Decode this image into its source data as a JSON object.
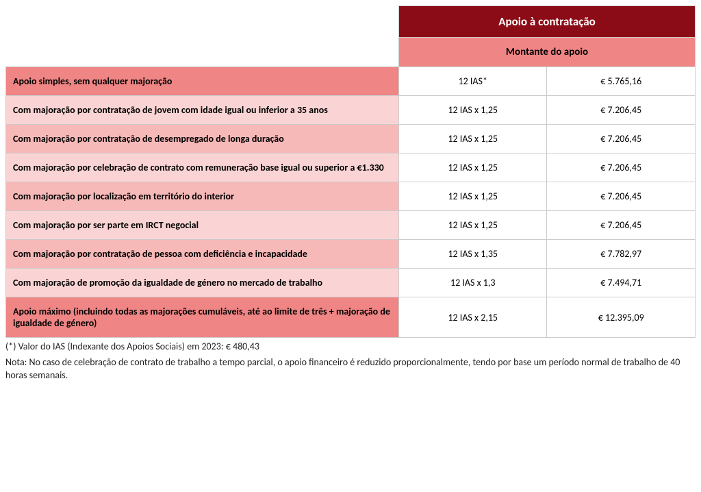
{
  "colors": {
    "header_top_bg": "#8b0c17",
    "header_sub_bg": "#f08585",
    "shade_dark": "#f08585",
    "shade_mid": "#f7b8b8",
    "shade_light": "#fad4d4",
    "border": "#cccccc",
    "header_text": "#ffffff",
    "text": "#000000"
  },
  "header": {
    "top": "Apoio à contratação",
    "sub": "Montante do apoio"
  },
  "rows": [
    {
      "shade": "dark",
      "label": "Apoio simples, sem qualquer majoração",
      "formula": "12 IAS*",
      "amount": "€ 5.765,16"
    },
    {
      "shade": "light",
      "label": "Com majoração por contratação de jovem com idade igual ou inferior a 35 anos",
      "formula": "12 IAS x 1,25",
      "amount": "€ 7.206,45"
    },
    {
      "shade": "mid",
      "label": "Com majoração por contratação de desempregado de longa duração",
      "formula": "12 IAS x 1,25",
      "amount": "€ 7.206,45"
    },
    {
      "shade": "light",
      "label": "Com majoração por celebração de contrato com remuneração base igual ou superior a €1.330",
      "formula": "12 IAS x 1,25",
      "amount": "€ 7.206,45"
    },
    {
      "shade": "mid",
      "label": "Com majoração por localização em território do interior",
      "formula": "12 IAS x 1,25",
      "amount": "€ 7.206,45"
    },
    {
      "shade": "light",
      "label": "Com majoração por ser parte em IRCT negocial",
      "formula": "12 IAS x 1,25",
      "amount": "€ 7.206,45"
    },
    {
      "shade": "mid",
      "label": "Com majoração por contratação de pessoa com deficiência e incapacidade",
      "formula": "12 IAS x 1,35",
      "amount": "€ 7.782,97"
    },
    {
      "shade": "light",
      "label": "Com majoração de promoção da igualdade de género no mercado de trabalho",
      "formula": "12 IAS x 1,3",
      "amount": "€ 7.494,71"
    },
    {
      "shade": "dark",
      "label": "Apoio máximo (incluindo todas as majorações cumuláveis, até ao limite de três + majoração de igualdade de género)",
      "formula": "12 IAS x 2,15",
      "amount": "€ 12.395,09"
    }
  ],
  "footnotes": {
    "line1": "(*) Valor do IAS (Indexante dos Apoios Sociais) em 2023: € 480,43",
    "line2": "Nota: No caso de celebração de contrato de trabalho a tempo parcial, o apoio financeiro é reduzido proporcionalmente, tendo por base um período normal de trabalho de 40 horas semanais."
  }
}
